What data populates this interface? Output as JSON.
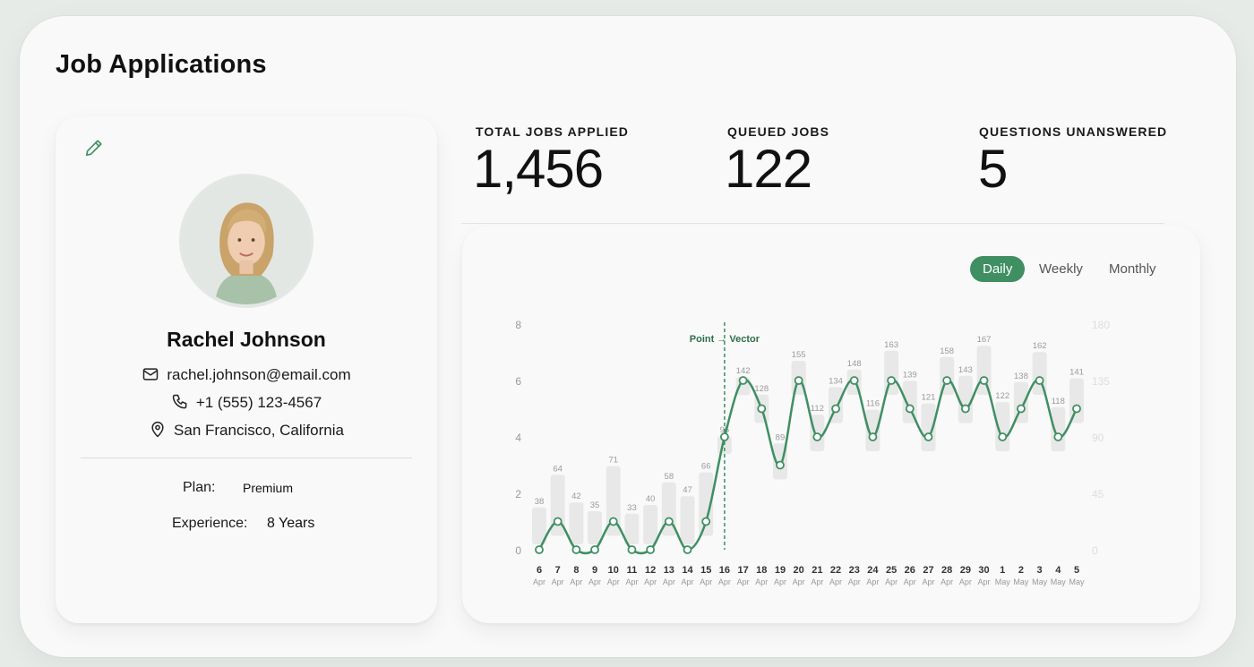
{
  "page": {
    "title": "Job Applications"
  },
  "profile": {
    "name": "Rachel Johnson",
    "email": "rachel.johnson@email.com",
    "phone": "+1 (555) 123-4567",
    "location": "San Francisco, California",
    "plan_label": "Plan:",
    "plan_value": "Premium",
    "experience_label": "Experience:",
    "experience_value": "8 Years",
    "icons": {
      "edit": "pencil-icon",
      "email": "envelope-icon",
      "phone": "phone-icon",
      "location": "map-pin-icon"
    }
  },
  "stats": [
    {
      "label": "TOTAL JOBS APPLIED",
      "value": "1,456"
    },
    {
      "label": "QUEUED JOBS",
      "value": "122"
    },
    {
      "label": "QUESTIONS UNANSWERED",
      "value": "5"
    }
  ],
  "chart_toggle": {
    "options": [
      "Daily",
      "Weekly",
      "Monthly"
    ],
    "selected": "Daily"
  },
  "chart_data": {
    "type": "line",
    "colors": {
      "line": "#3f8f63",
      "bar": "#e8e8e8",
      "accent": "#3f8f63"
    },
    "annotation": {
      "label": "Point → Vector",
      "at_index": 10
    },
    "x": [
      {
        "day": "6",
        "month": "Apr"
      },
      {
        "day": "7",
        "month": "Apr"
      },
      {
        "day": "8",
        "month": "Apr"
      },
      {
        "day": "9",
        "month": "Apr"
      },
      {
        "day": "10",
        "month": "Apr"
      },
      {
        "day": "11",
        "month": "Apr"
      },
      {
        "day": "12",
        "month": "Apr"
      },
      {
        "day": "13",
        "month": "Apr"
      },
      {
        "day": "14",
        "month": "Apr"
      },
      {
        "day": "15",
        "month": "Apr"
      },
      {
        "day": "16",
        "month": "Apr"
      },
      {
        "day": "17",
        "month": "Apr"
      },
      {
        "day": "18",
        "month": "Apr"
      },
      {
        "day": "19",
        "month": "Apr"
      },
      {
        "day": "20",
        "month": "Apr"
      },
      {
        "day": "21",
        "month": "Apr"
      },
      {
        "day": "22",
        "month": "Apr"
      },
      {
        "day": "23",
        "month": "Apr"
      },
      {
        "day": "24",
        "month": "Apr"
      },
      {
        "day": "25",
        "month": "Apr"
      },
      {
        "day": "26",
        "month": "Apr"
      },
      {
        "day": "27",
        "month": "Apr"
      },
      {
        "day": "28",
        "month": "Apr"
      },
      {
        "day": "29",
        "month": "Apr"
      },
      {
        "day": "30",
        "month": "Apr"
      },
      {
        "day": "1",
        "month": "May"
      },
      {
        "day": "2",
        "month": "May"
      },
      {
        "day": "3",
        "month": "May"
      },
      {
        "day": "4",
        "month": "May"
      },
      {
        "day": "5",
        "month": "May"
      }
    ],
    "y_left": {
      "ticks": [
        "0",
        "2",
        "4",
        "6",
        "8"
      ],
      "range": [
        0,
        8
      ]
    },
    "y_right": {
      "ticks": [
        "0",
        "45",
        "90",
        "135",
        "180"
      ],
      "range": [
        0,
        180
      ]
    },
    "series": [
      {
        "axis": "left",
        "values": [
          0,
          1,
          0,
          0,
          1,
          0,
          0,
          1,
          0,
          1,
          4,
          6,
          5,
          3,
          6,
          4,
          5,
          6,
          4,
          6,
          5,
          4,
          6,
          5,
          6,
          4,
          5,
          6,
          4,
          5
        ]
      },
      {
        "axis": "right",
        "values": [
          38,
          64,
          42,
          35,
          71,
          33,
          40,
          58,
          47,
          66,
          95,
          142,
          128,
          89,
          155,
          112,
          134,
          148,
          116,
          163,
          139,
          121,
          158,
          143,
          167,
          122,
          138,
          162,
          118,
          141
        ]
      }
    ]
  }
}
